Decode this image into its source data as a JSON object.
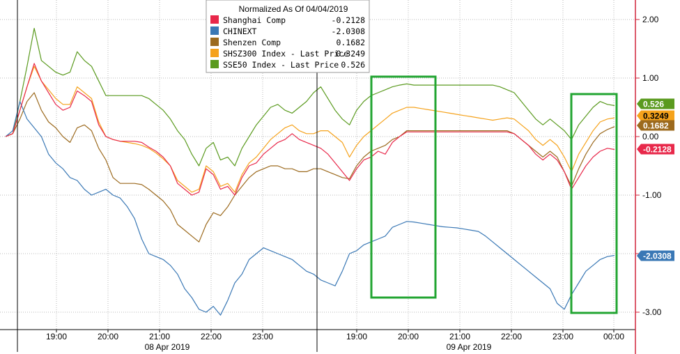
{
  "chart_data": {
    "type": "line",
    "title": "Normalized As Of 04/04/2019",
    "ylim": [
      -3.2,
      2.3
    ],
    "y_ticks": [
      2.0,
      1.0,
      0.0,
      -1.0,
      -2.0,
      -3.0
    ],
    "y_tick_labels": [
      "2.00",
      "1.00",
      "0.00",
      "-1.00",
      "-2.00",
      "-3.00"
    ],
    "x_time_ticks": [
      "19:00",
      "20:00",
      "21:00",
      "22:00",
      "23:00",
      "19:00",
      "20:00",
      "21:00",
      "22:00",
      "23:00",
      "00:00"
    ],
    "x_date_labels": [
      "08 Apr 2019",
      "09 Apr 2019"
    ],
    "grid": true,
    "legend_position": "top-center",
    "x": [
      0,
      1,
      2,
      3,
      4,
      5,
      6,
      7,
      8,
      9,
      10,
      11,
      12,
      13,
      14,
      15,
      16,
      17,
      18,
      19,
      20,
      21,
      22,
      23,
      24,
      25,
      26,
      27,
      28,
      29,
      30,
      31,
      32,
      33,
      34,
      35,
      36,
      37,
      38,
      39,
      40,
      41,
      42,
      43,
      44,
      45,
      46,
      47,
      48,
      49,
      50,
      51,
      52,
      53,
      54,
      55,
      56,
      57,
      58,
      59,
      60,
      61,
      62,
      63,
      64,
      65,
      66,
      67,
      68,
      69,
      70,
      71,
      72,
      73,
      74,
      75,
      76,
      77,
      78,
      79,
      80,
      81,
      82,
      83,
      84,
      85
    ],
    "series": [
      {
        "name": "Shanghai Comp",
        "value_label": "-0.2128",
        "color": "#e8284a",
        "values": [
          0.0,
          0.05,
          0.45,
          0.85,
          1.25,
          0.95,
          0.75,
          0.55,
          0.45,
          0.5,
          0.78,
          0.7,
          0.6,
          0.2,
          0.0,
          -0.05,
          -0.08,
          -0.08,
          -0.08,
          -0.1,
          -0.18,
          -0.25,
          -0.35,
          -0.5,
          -0.8,
          -0.9,
          -1.0,
          -0.95,
          -0.55,
          -0.65,
          -0.9,
          -0.85,
          -1.0,
          -0.7,
          -0.5,
          -0.45,
          -0.3,
          -0.2,
          -0.1,
          -0.05,
          0.05,
          -0.05,
          -0.1,
          -0.15,
          -0.2,
          -0.3,
          -0.45,
          -0.6,
          -0.75,
          -0.55,
          -0.4,
          -0.35,
          -0.25,
          -0.3,
          -0.1,
          0.0,
          0.08,
          0.08,
          0.08,
          0.08,
          0.08,
          0.08,
          0.08,
          0.08,
          0.08,
          0.08,
          0.08,
          0.08,
          0.08,
          0.08,
          0.08,
          0.05,
          -0.05,
          -0.15,
          -0.3,
          -0.4,
          -0.3,
          -0.4,
          -0.6,
          -0.9,
          -0.7,
          -0.5,
          -0.35,
          -0.25,
          -0.2,
          -0.22
        ]
      },
      {
        "name": "CHINEXT",
        "value_label": "-2.0308",
        "color": "#3a78b5",
        "values": [
          0.0,
          0.1,
          0.6,
          0.3,
          0.15,
          0.0,
          -0.3,
          -0.45,
          -0.55,
          -0.7,
          -0.75,
          -0.9,
          -1.0,
          -0.95,
          -0.9,
          -1.0,
          -1.05,
          -1.2,
          -1.4,
          -1.75,
          -2.0,
          -2.05,
          -2.1,
          -2.2,
          -2.35,
          -2.6,
          -2.75,
          -2.95,
          -3.0,
          -2.9,
          -3.05,
          -2.8,
          -2.5,
          -2.35,
          -2.1,
          -2.0,
          -1.9,
          -1.95,
          -2.0,
          -2.05,
          -2.1,
          -2.2,
          -2.3,
          -2.35,
          -2.45,
          -2.5,
          -2.55,
          -2.3,
          -2.0,
          -1.95,
          -1.85,
          -1.8,
          -1.75,
          -1.7,
          -1.55,
          -1.5,
          -1.45,
          -1.46,
          -1.48,
          -1.5,
          -1.52,
          -1.54,
          -1.55,
          -1.56,
          -1.58,
          -1.6,
          -1.62,
          -1.7,
          -1.8,
          -1.9,
          -2.0,
          -2.1,
          -2.2,
          -2.3,
          -2.4,
          -2.5,
          -2.6,
          -2.85,
          -2.95,
          -2.7,
          -2.5,
          -2.3,
          -2.2,
          -2.1,
          -2.05,
          -2.03
        ]
      },
      {
        "name": "Shenzen Comp",
        "value_label": "0.1682",
        "color": "#9c6a1e",
        "values": [
          0.0,
          0.05,
          0.3,
          0.6,
          0.75,
          0.45,
          0.25,
          0.15,
          0.0,
          -0.1,
          0.15,
          0.2,
          0.1,
          -0.2,
          -0.4,
          -0.7,
          -0.8,
          -0.8,
          -0.8,
          -0.82,
          -0.9,
          -1.0,
          -1.1,
          -1.25,
          -1.5,
          -1.6,
          -1.7,
          -1.8,
          -1.5,
          -1.3,
          -1.35,
          -1.2,
          -1.0,
          -0.85,
          -0.7,
          -0.6,
          -0.55,
          -0.5,
          -0.5,
          -0.55,
          -0.55,
          -0.6,
          -0.6,
          -0.55,
          -0.55,
          -0.6,
          -0.65,
          -0.7,
          -0.72,
          -0.5,
          -0.35,
          -0.25,
          -0.2,
          -0.15,
          -0.05,
          0.0,
          0.1,
          0.1,
          0.1,
          0.1,
          0.1,
          0.1,
          0.1,
          0.1,
          0.1,
          0.1,
          0.1,
          0.1,
          0.1,
          0.1,
          0.1,
          0.05,
          -0.05,
          -0.15,
          -0.25,
          -0.35,
          -0.25,
          -0.35,
          -0.6,
          -0.85,
          -0.55,
          -0.3,
          -0.1,
          0.05,
          0.12,
          0.17
        ]
      },
      {
        "name": "SHSZ300 Index - Last Price",
        "value_label": "0.3249",
        "color": "#f5a21b",
        "values": [
          0.0,
          0.05,
          0.45,
          0.85,
          1.2,
          0.95,
          0.8,
          0.65,
          0.55,
          0.55,
          0.85,
          0.75,
          0.65,
          0.25,
          0.0,
          -0.05,
          -0.08,
          -0.1,
          -0.12,
          -0.15,
          -0.2,
          -0.28,
          -0.38,
          -0.5,
          -0.75,
          -0.85,
          -0.95,
          -0.9,
          -0.5,
          -0.6,
          -0.85,
          -0.8,
          -0.95,
          -0.65,
          -0.45,
          -0.35,
          -0.2,
          -0.05,
          0.05,
          0.15,
          0.2,
          0.1,
          0.05,
          0.05,
          0.1,
          0.1,
          0.0,
          -0.1,
          -0.35,
          -0.15,
          0.0,
          0.1,
          0.2,
          0.3,
          0.4,
          0.45,
          0.5,
          0.5,
          0.48,
          0.46,
          0.44,
          0.42,
          0.4,
          0.38,
          0.36,
          0.34,
          0.32,
          0.3,
          0.28,
          0.3,
          0.32,
          0.3,
          0.2,
          0.1,
          -0.05,
          -0.15,
          -0.05,
          -0.15,
          -0.35,
          -0.6,
          -0.3,
          -0.1,
          0.1,
          0.25,
          0.3,
          0.32
        ]
      },
      {
        "name": "SSE50 Index - Last Price",
        "value_label": "0.526",
        "color": "#5a9a1e",
        "values": [
          0.0,
          0.05,
          0.6,
          1.2,
          1.85,
          1.3,
          1.2,
          1.1,
          1.05,
          1.1,
          1.45,
          1.3,
          1.2,
          0.95,
          0.7,
          0.7,
          0.7,
          0.7,
          0.7,
          0.7,
          0.65,
          0.55,
          0.45,
          0.3,
          0.1,
          -0.05,
          -0.3,
          -0.5,
          -0.2,
          -0.1,
          -0.4,
          -0.35,
          -0.5,
          -0.2,
          0.0,
          0.2,
          0.35,
          0.5,
          0.55,
          0.45,
          0.4,
          0.5,
          0.6,
          0.75,
          0.85,
          0.65,
          0.45,
          0.3,
          0.2,
          0.45,
          0.6,
          0.7,
          0.75,
          0.8,
          0.85,
          0.88,
          0.9,
          0.88,
          0.88,
          0.88,
          0.88,
          0.88,
          0.88,
          0.88,
          0.88,
          0.88,
          0.88,
          0.88,
          0.88,
          0.85,
          0.8,
          0.75,
          0.6,
          0.45,
          0.3,
          0.2,
          0.3,
          0.2,
          0.1,
          -0.05,
          0.2,
          0.35,
          0.5,
          0.6,
          0.55,
          0.53
        ]
      }
    ]
  },
  "colors": {
    "shanghai": "#e8284a",
    "chinext": "#3a78b5",
    "shenzen": "#9c6a1e",
    "shsz300": "#f5a21b",
    "sse50": "#5a9a1e",
    "axis": "#d0243a",
    "highlight_box": "#22a532"
  }
}
